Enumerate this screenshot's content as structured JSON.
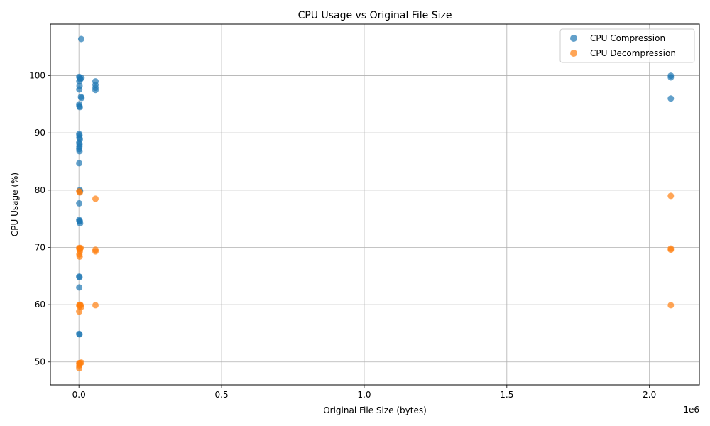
{
  "chart_data": {
    "type": "scatter",
    "title": "CPU Usage vs Original File Size",
    "xlabel": "Original File Size (bytes)",
    "ylabel": "CPU Usage (%)",
    "x_offset_label": "1e6",
    "xlim": [
      -100000,
      2175000
    ],
    "ylim": [
      46,
      109
    ],
    "x_ticks": [
      0,
      0.5,
      1.0,
      1.5,
      2.0
    ],
    "x_tick_labels": [
      "0.0",
      "0.5",
      "1.0",
      "1.5",
      "2.0"
    ],
    "y_ticks": [
      50,
      60,
      70,
      80,
      90,
      100
    ],
    "y_tick_labels": [
      "50",
      "60",
      "70",
      "80",
      "90",
      "100"
    ],
    "grid": true,
    "legend_position": "top-right",
    "colors": {
      "compression": "#1f77b4",
      "decompression": "#ff7f0e"
    },
    "series": [
      {
        "name": "CPU Compression",
        "points": [
          [
            8000,
            106.4
          ],
          [
            1000,
            99.8
          ],
          [
            3000,
            99.6
          ],
          [
            5000,
            99.4
          ],
          [
            9000,
            99.6
          ],
          [
            1500,
            99.0
          ],
          [
            2000,
            98.2
          ],
          [
            1200,
            97.6
          ],
          [
            58000,
            99.0
          ],
          [
            58000,
            98.4
          ],
          [
            58000,
            97.9
          ],
          [
            58000,
            97.5
          ],
          [
            7000,
            96.3
          ],
          [
            9000,
            96.1
          ],
          [
            1000,
            95.0
          ],
          [
            1500,
            94.7
          ],
          [
            3000,
            94.5
          ],
          [
            1000,
            89.8
          ],
          [
            2000,
            89.6
          ],
          [
            1500,
            89.2
          ],
          [
            3000,
            88.9
          ],
          [
            1000,
            88.3
          ],
          [
            2000,
            88.0
          ],
          [
            1500,
            87.6
          ],
          [
            1000,
            87.2
          ],
          [
            2000,
            86.8
          ],
          [
            1000,
            84.7
          ],
          [
            3000,
            80.0
          ],
          [
            4000,
            79.8
          ],
          [
            1000,
            77.7
          ],
          [
            1000,
            74.8
          ],
          [
            2000,
            74.6
          ],
          [
            3000,
            74.6
          ],
          [
            4000,
            74.2
          ],
          [
            1000,
            64.9
          ],
          [
            2000,
            64.8
          ],
          [
            1000,
            63.0
          ],
          [
            1000,
            54.9
          ],
          [
            2000,
            54.8
          ],
          [
            2075000,
            100.0
          ],
          [
            2075000,
            99.7
          ],
          [
            2075000,
            96.0
          ]
        ]
      },
      {
        "name": "CPU Decompression",
        "points": [
          [
            1000,
            79.8
          ],
          [
            3000,
            79.6
          ],
          [
            1000,
            69.9
          ],
          [
            2000,
            69.7
          ],
          [
            4000,
            69.8
          ],
          [
            6000,
            69.9
          ],
          [
            3000,
            69.3
          ],
          [
            1500,
            68.8
          ],
          [
            2500,
            68.4
          ],
          [
            1000,
            59.9
          ],
          [
            2000,
            59.7
          ],
          [
            4000,
            60.0
          ],
          [
            6000,
            59.9
          ],
          [
            8000,
            59.6
          ],
          [
            1000,
            58.8
          ],
          [
            1000,
            49.8
          ],
          [
            2000,
            49.6
          ],
          [
            4000,
            49.8
          ],
          [
            8000,
            49.9
          ],
          [
            1000,
            49.3
          ],
          [
            1000,
            48.9
          ],
          [
            58000,
            78.5
          ],
          [
            58000,
            69.6
          ],
          [
            58000,
            69.3
          ],
          [
            58000,
            59.9
          ],
          [
            2075000,
            79.0
          ],
          [
            2075000,
            69.8
          ],
          [
            2075000,
            69.6
          ],
          [
            2075000,
            59.9
          ]
        ]
      }
    ]
  }
}
